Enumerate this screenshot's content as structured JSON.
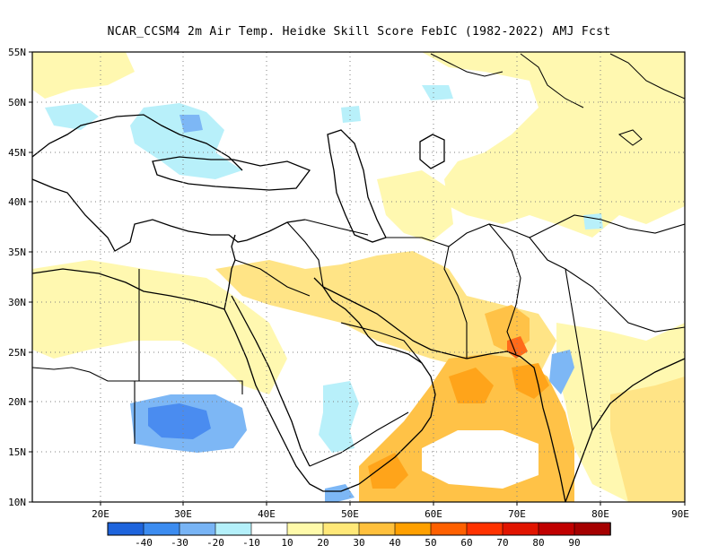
{
  "title": "NCAR_CCSM4  2m Air Temp. Heidke Skill Score FebIC (1982-2022) AMJ Fcst",
  "map": {
    "lat_labels": [
      "55N",
      "50N",
      "45N",
      "40N",
      "35N",
      "30N",
      "25N",
      "20N",
      "15N",
      "10N"
    ],
    "lon_labels": [
      "20E",
      "30E",
      "40E",
      "50E",
      "60E",
      "70E",
      "80E",
      "90E"
    ],
    "grid": "dotted"
  },
  "colorbar": {
    "labels": [
      "-40",
      "-30",
      "-20",
      "-10",
      "10",
      "20",
      "30",
      "40",
      "50",
      "60",
      "70",
      "80",
      "90"
    ],
    "colors": [
      "#1e64dc",
      "#3c8cf0",
      "#78b4f5",
      "#b4f0fa",
      "#ffffff",
      "#fffaaa",
      "#ffe878",
      "#ffc03c",
      "#ffa000",
      "#ff6000",
      "#ff3200",
      "#e11400",
      "#c00000",
      "#a50000"
    ]
  },
  "shading": {
    "light_yellow": "#fff8b0",
    "yellow": "#ffe486",
    "orange": "#ffc247",
    "dark_orange": "#ffa41a",
    "red_orange": "#ff6a1a",
    "light_blue": "#b8f0fa",
    "blue": "#7db7f5",
    "deep_blue": "#4a8cf0"
  }
}
